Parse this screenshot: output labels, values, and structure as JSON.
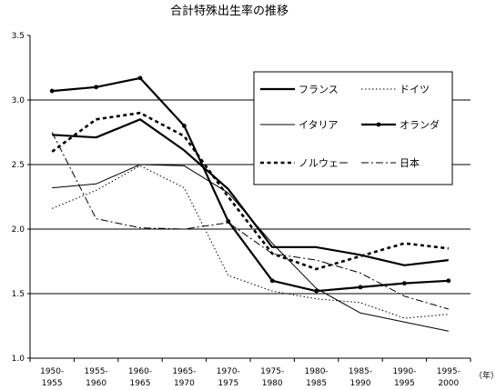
{
  "chart_data": {
    "type": "line",
    "title": "合計特殊出生率の推移",
    "x_unit": "（年）",
    "categories": [
      [
        "1950-",
        "1955"
      ],
      [
        "1955-",
        "1960"
      ],
      [
        "1960-",
        "1965"
      ],
      [
        "1965-",
        "1970"
      ],
      [
        "1970-",
        "1975"
      ],
      [
        "1975-",
        "1980"
      ],
      [
        "1980-",
        "1985"
      ],
      [
        "1985-",
        "1990"
      ],
      [
        "1990-",
        "1995"
      ],
      [
        "1995-",
        "2000"
      ]
    ],
    "ylim": [
      1.0,
      3.5
    ],
    "yticks": [
      "1.0",
      "1.5",
      "2.0",
      "2.5",
      "3.0",
      "3.5"
    ],
    "gridlines": [
      1.5,
      2.0,
      2.5,
      3.0
    ],
    "legend_position": "top-right",
    "series": [
      {
        "name": "フランス",
        "style": "thick-solid",
        "color": "#000000",
        "values": [
          2.73,
          2.71,
          2.85,
          2.61,
          2.31,
          1.86,
          1.86,
          1.8,
          1.72,
          1.76
        ]
      },
      {
        "name": "ドイツ",
        "style": "thin-dotted",
        "color": "#000000",
        "values": [
          2.16,
          2.3,
          2.49,
          2.32,
          1.64,
          1.52,
          1.46,
          1.43,
          1.31,
          1.34
        ]
      },
      {
        "name": "イタリア",
        "style": "thin-solid",
        "color": "#000000",
        "values": [
          2.32,
          2.35,
          2.5,
          2.49,
          2.28,
          1.89,
          1.54,
          1.35,
          1.28,
          1.21
        ]
      },
      {
        "name": "オランダ",
        "style": "thick-solid-markers",
        "color": "#000000",
        "values": [
          3.07,
          3.1,
          3.17,
          2.8,
          2.06,
          1.6,
          1.52,
          1.55,
          1.58,
          1.6
        ]
      },
      {
        "name": "ノルウェー",
        "style": "thick-dashed",
        "color": "#000000",
        "values": [
          2.6,
          2.85,
          2.9,
          2.72,
          2.25,
          1.81,
          1.69,
          1.79,
          1.89,
          1.85
        ]
      },
      {
        "name": "日本",
        "style": "dash-dot",
        "color": "#000000",
        "values": [
          2.75,
          2.08,
          2.01,
          2.0,
          2.05,
          1.81,
          1.76,
          1.66,
          1.48,
          1.38
        ]
      }
    ]
  }
}
